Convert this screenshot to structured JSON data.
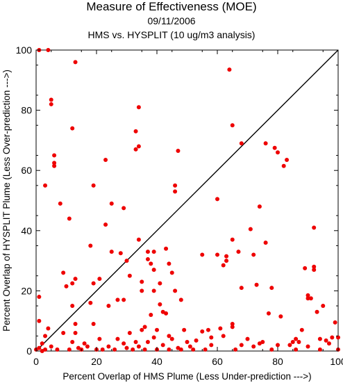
{
  "header": {
    "title": "Measure of Effectiveness (MOE)",
    "date": "09/11/2006",
    "subtitle": "HMS vs. HYSPLIT  (10 ug/m3 analysis)"
  },
  "chart_data": {
    "type": "scatter",
    "title": "Measure of Effectiveness (MOE)",
    "subtitle": "09/11/2006",
    "subtitle2": "HMS vs. HYSPLIT  (10 ug/m3 analysis)",
    "xlabel": "Percent Overlap of HMS Plume (Less Under-prediction --->)",
    "ylabel": "Percent Overlap of HYSPLIT Plume (Less Over-prediction --->)",
    "xlim": [
      0,
      100
    ],
    "ylim": [
      0,
      100
    ],
    "xticks": [
      0,
      20,
      40,
      60,
      80,
      100
    ],
    "yticks": [
      0,
      20,
      40,
      60,
      80,
      100
    ],
    "grid": false,
    "reference_line": {
      "from": [
        0,
        0
      ],
      "to": [
        100,
        100
      ],
      "color": "#000000"
    },
    "point_color": "#ee0000",
    "points": [
      [
        1,
        100
      ],
      [
        4,
        100
      ],
      [
        5,
        83.5
      ],
      [
        5,
        82
      ],
      [
        6,
        65
      ],
      [
        6,
        62.5
      ],
      [
        6,
        61.5
      ],
      [
        13,
        96
      ],
      [
        3,
        55
      ],
      [
        8,
        49
      ],
      [
        12,
        74
      ],
      [
        11,
        44
      ],
      [
        9,
        26
      ],
      [
        12,
        22.5
      ],
      [
        13,
        24
      ],
      [
        10,
        21.5
      ],
      [
        12,
        15
      ],
      [
        13,
        9
      ],
      [
        13,
        6
      ],
      [
        1,
        18
      ],
      [
        1,
        10
      ],
      [
        4,
        7.5
      ],
      [
        3,
        5
      ],
      [
        0,
        0.5
      ],
      [
        1,
        1
      ],
      [
        2,
        2.5
      ],
      [
        9,
        6
      ],
      [
        18,
        35
      ],
      [
        19,
        55
      ],
      [
        21,
        24
      ],
      [
        19,
        22.5
      ],
      [
        18,
        16
      ],
      [
        19,
        9
      ],
      [
        21,
        4
      ],
      [
        23,
        63.5
      ],
      [
        23,
        42
      ],
      [
        24,
        15
      ],
      [
        25,
        49
      ],
      [
        25,
        33
      ],
      [
        28,
        32.5
      ],
      [
        27,
        17
      ],
      [
        29,
        47.5
      ],
      [
        29,
        17
      ],
      [
        30,
        30
      ],
      [
        31,
        25
      ],
      [
        33,
        73
      ],
      [
        33,
        67
      ],
      [
        34,
        68
      ],
      [
        34,
        81
      ],
      [
        34,
        37
      ],
      [
        35,
        23
      ],
      [
        35,
        20
      ],
      [
        37,
        33
      ],
      [
        37,
        30.5
      ],
      [
        38,
        29
      ],
      [
        39,
        33
      ],
      [
        39,
        20
      ],
      [
        39,
        27
      ],
      [
        41,
        15.5
      ],
      [
        41,
        22.5
      ],
      [
        43,
        34
      ],
      [
        43,
        12.5
      ],
      [
        44,
        29
      ],
      [
        45,
        26
      ],
      [
        46,
        53
      ],
      [
        46,
        55
      ],
      [
        47,
        66.5
      ],
      [
        48,
        17
      ],
      [
        46,
        20
      ],
      [
        42,
        13
      ],
      [
        38,
        12
      ],
      [
        39,
        4.5
      ],
      [
        35,
        7
      ],
      [
        34,
        1.5
      ],
      [
        31,
        6
      ],
      [
        29,
        2.5
      ],
      [
        33,
        3
      ],
      [
        37,
        3
      ],
      [
        40,
        7
      ],
      [
        42,
        2
      ],
      [
        45,
        4
      ],
      [
        47,
        1
      ],
      [
        49,
        7
      ],
      [
        51,
        1.5
      ],
      [
        53,
        3.5
      ],
      [
        55,
        32
      ],
      [
        55,
        6.5
      ],
      [
        58,
        4.5
      ],
      [
        60,
        50.5
      ],
      [
        60,
        32
      ],
      [
        61,
        7.5
      ],
      [
        62,
        28.5
      ],
      [
        63,
        30
      ],
      [
        63,
        31.5
      ],
      [
        64,
        93.5
      ],
      [
        65,
        75
      ],
      [
        65,
        37
      ],
      [
        65,
        9
      ],
      [
        65,
        8
      ],
      [
        67,
        33
      ],
      [
        68,
        69
      ],
      [
        68,
        21
      ],
      [
        70,
        4
      ],
      [
        71,
        40.5
      ],
      [
        72,
        32
      ],
      [
        73,
        22
      ],
      [
        74,
        48
      ],
      [
        75,
        3
      ],
      [
        76,
        36
      ],
      [
        76,
        69
      ],
      [
        77,
        12.5
      ],
      [
        78,
        21
      ],
      [
        79,
        67.5
      ],
      [
        80,
        66
      ],
      [
        81,
        11.5
      ],
      [
        82,
        61.5
      ],
      [
        83,
        63.5
      ],
      [
        84,
        2
      ],
      [
        85,
        3
      ],
      [
        86,
        4
      ],
      [
        87,
        3
      ],
      [
        88,
        7
      ],
      [
        89,
        27.5
      ],
      [
        90,
        18.5
      ],
      [
        90,
        17.5
      ],
      [
        91,
        17.5
      ],
      [
        92,
        41
      ],
      [
        92,
        28
      ],
      [
        92,
        27
      ],
      [
        93,
        13
      ],
      [
        94,
        4
      ],
      [
        95,
        15
      ],
      [
        96,
        3.5
      ],
      [
        98,
        4.5
      ],
      [
        99,
        9.5
      ],
      [
        100,
        4.5
      ],
      [
        100,
        0.5
      ],
      [
        78,
        0.5
      ],
      [
        72,
        1.5
      ],
      [
        66,
        0.5
      ],
      [
        58,
        2
      ],
      [
        56,
        0.5
      ],
      [
        52,
        0.5
      ],
      [
        48,
        0.5
      ],
      [
        44,
        0.5
      ],
      [
        40,
        0.5
      ],
      [
        36,
        0.5
      ],
      [
        32,
        0.5
      ],
      [
        30,
        1
      ],
      [
        26,
        0.5
      ],
      [
        24,
        1.5
      ],
      [
        22,
        0.5
      ],
      [
        20,
        0.5
      ],
      [
        17,
        1.5
      ],
      [
        15,
        0.5
      ],
      [
        14,
        1
      ],
      [
        11,
        0.5
      ],
      [
        7,
        0.5
      ],
      [
        5,
        1.5
      ],
      [
        2,
        0
      ],
      [
        3,
        0.5
      ],
      [
        12,
        3
      ],
      [
        16,
        2.5
      ],
      [
        27,
        4
      ],
      [
        36,
        8
      ],
      [
        44,
        5
      ],
      [
        50,
        3
      ],
      [
        57,
        7
      ],
      [
        62,
        5
      ],
      [
        68,
        2
      ],
      [
        74,
        2.5
      ],
      [
        80,
        2
      ],
      [
        86,
        0.5
      ],
      [
        90,
        1.5
      ],
      [
        94,
        0.5
      ],
      [
        97,
        2.5
      ]
    ]
  }
}
